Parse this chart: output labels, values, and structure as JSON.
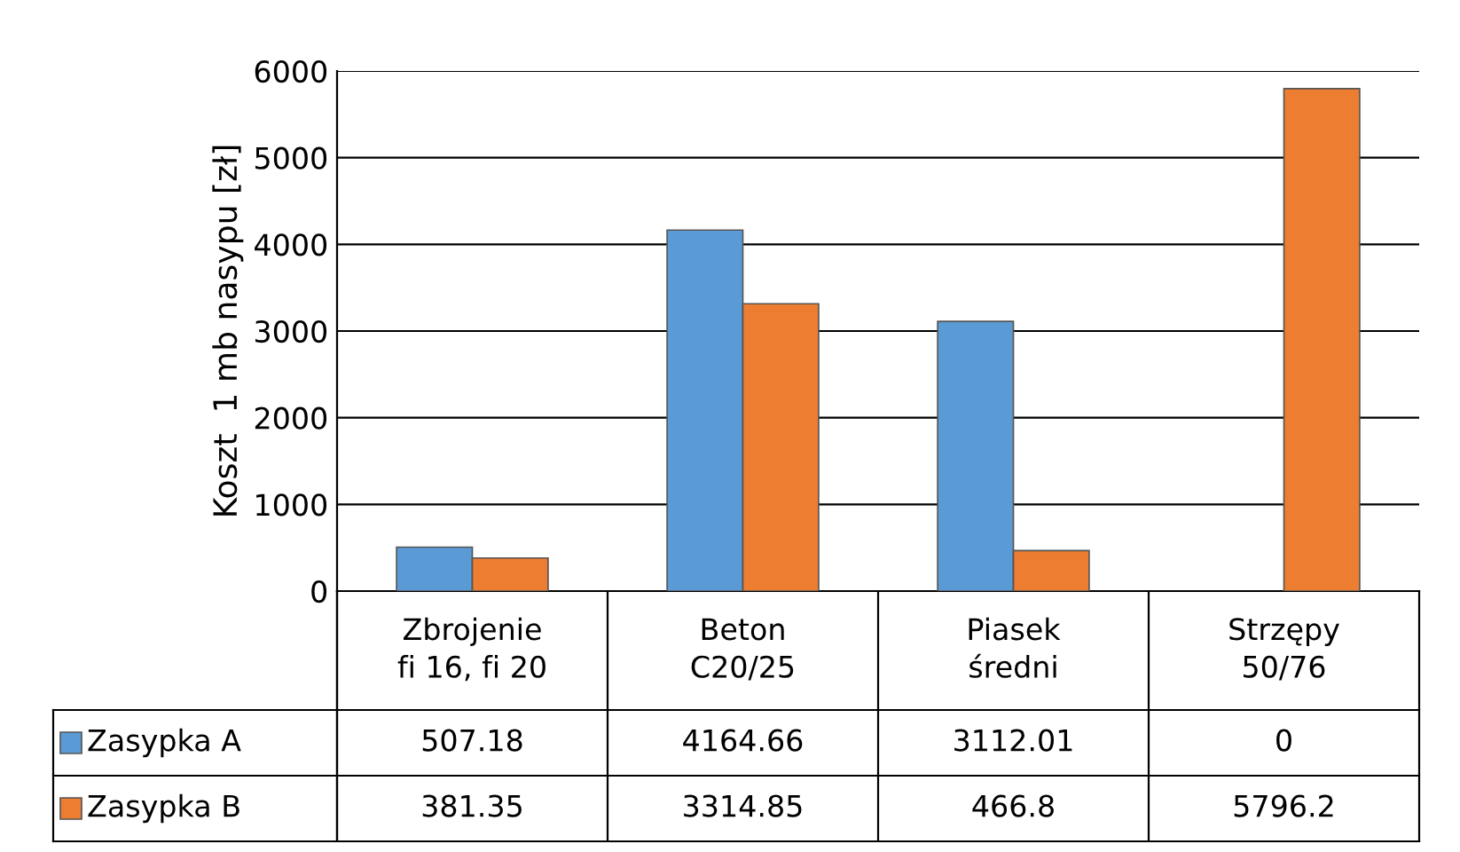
{
  "chart_data": {
    "type": "bar",
    "ylabel": "Koszt  1 mb nasypu [zł]",
    "categories": [
      "Zbrojenie\nfi 16, fi 20",
      "Beton\nC20/25",
      "Piasek\nśredni",
      "Strzępy\n50/76"
    ],
    "series": [
      {
        "name": "Zasypka A",
        "color": "#5b9bd5",
        "values": [
          507.18,
          4164.66,
          3112.01,
          0
        ]
      },
      {
        "name": "Zasypka B",
        "color": "#ed7d31",
        "values": [
          381.35,
          3314.85,
          466.8,
          5796.2
        ]
      }
    ],
    "ylim": [
      0,
      6000
    ],
    "yticks": [
      0,
      1000,
      2000,
      3000,
      4000,
      5000,
      6000
    ],
    "grid": "y",
    "data_labels": true,
    "legend": "bottom left"
  }
}
